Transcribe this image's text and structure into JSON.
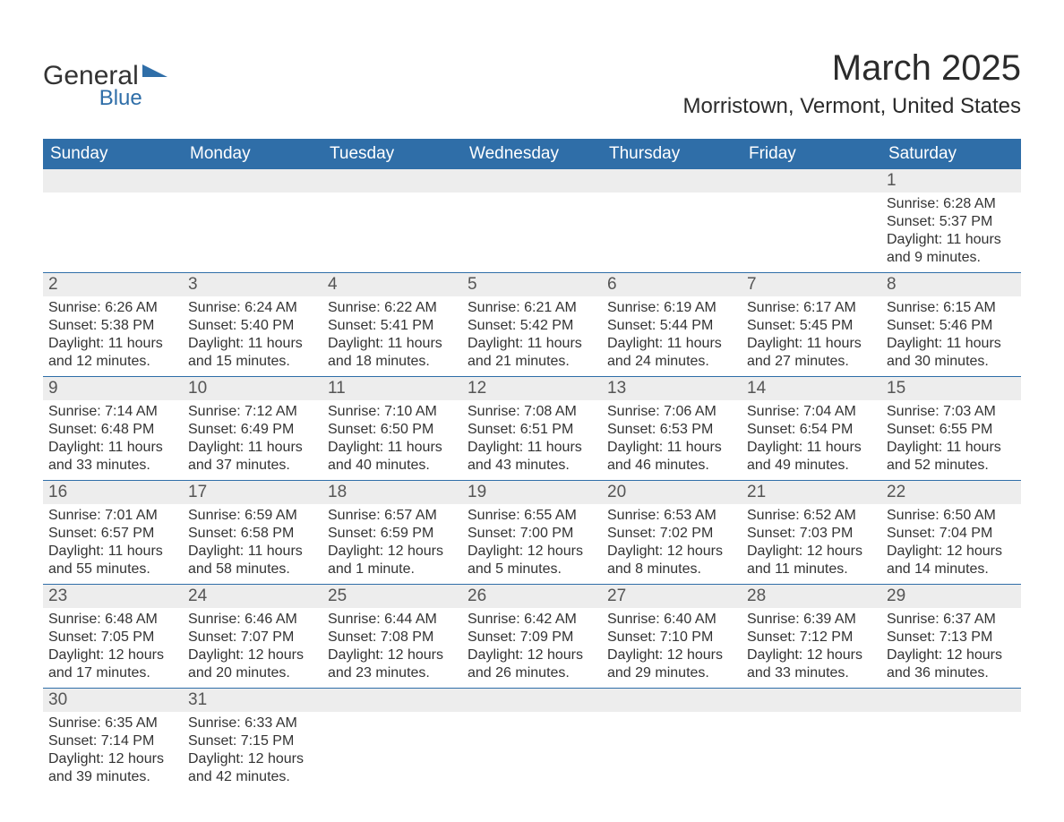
{
  "logo": {
    "word1": "General",
    "word2": "Blue",
    "icon_color": "#2f6ea8"
  },
  "title": "March 2025",
  "location": "Morristown, Vermont, United States",
  "colors": {
    "header_bg": "#2f6ea8",
    "header_fg": "#ffffff",
    "daynum_bg": "#ededed",
    "row_divider": "#2f6ea8",
    "text": "#333333",
    "background": "#ffffff"
  },
  "typography": {
    "title_fontsize": 40,
    "location_fontsize": 24,
    "weekday_fontsize": 19,
    "daynum_fontsize": 19,
    "detail_fontsize": 16,
    "font_family": "Arial"
  },
  "calendar": {
    "weekdays": [
      "Sunday",
      "Monday",
      "Tuesday",
      "Wednesday",
      "Thursday",
      "Friday",
      "Saturday"
    ],
    "weeks": [
      [
        null,
        null,
        null,
        null,
        null,
        null,
        {
          "day": 1,
          "sunrise": "6:28 AM",
          "sunset": "5:37 PM",
          "daylight": "11 hours and 9 minutes."
        }
      ],
      [
        {
          "day": 2,
          "sunrise": "6:26 AM",
          "sunset": "5:38 PM",
          "daylight": "11 hours and 12 minutes."
        },
        {
          "day": 3,
          "sunrise": "6:24 AM",
          "sunset": "5:40 PM",
          "daylight": "11 hours and 15 minutes."
        },
        {
          "day": 4,
          "sunrise": "6:22 AM",
          "sunset": "5:41 PM",
          "daylight": "11 hours and 18 minutes."
        },
        {
          "day": 5,
          "sunrise": "6:21 AM",
          "sunset": "5:42 PM",
          "daylight": "11 hours and 21 minutes."
        },
        {
          "day": 6,
          "sunrise": "6:19 AM",
          "sunset": "5:44 PM",
          "daylight": "11 hours and 24 minutes."
        },
        {
          "day": 7,
          "sunrise": "6:17 AM",
          "sunset": "5:45 PM",
          "daylight": "11 hours and 27 minutes."
        },
        {
          "day": 8,
          "sunrise": "6:15 AM",
          "sunset": "5:46 PM",
          "daylight": "11 hours and 30 minutes."
        }
      ],
      [
        {
          "day": 9,
          "sunrise": "7:14 AM",
          "sunset": "6:48 PM",
          "daylight": "11 hours and 33 minutes."
        },
        {
          "day": 10,
          "sunrise": "7:12 AM",
          "sunset": "6:49 PM",
          "daylight": "11 hours and 37 minutes."
        },
        {
          "day": 11,
          "sunrise": "7:10 AM",
          "sunset": "6:50 PM",
          "daylight": "11 hours and 40 minutes."
        },
        {
          "day": 12,
          "sunrise": "7:08 AM",
          "sunset": "6:51 PM",
          "daylight": "11 hours and 43 minutes."
        },
        {
          "day": 13,
          "sunrise": "7:06 AM",
          "sunset": "6:53 PM",
          "daylight": "11 hours and 46 minutes."
        },
        {
          "day": 14,
          "sunrise": "7:04 AM",
          "sunset": "6:54 PM",
          "daylight": "11 hours and 49 minutes."
        },
        {
          "day": 15,
          "sunrise": "7:03 AM",
          "sunset": "6:55 PM",
          "daylight": "11 hours and 52 minutes."
        }
      ],
      [
        {
          "day": 16,
          "sunrise": "7:01 AM",
          "sunset": "6:57 PM",
          "daylight": "11 hours and 55 minutes."
        },
        {
          "day": 17,
          "sunrise": "6:59 AM",
          "sunset": "6:58 PM",
          "daylight": "11 hours and 58 minutes."
        },
        {
          "day": 18,
          "sunrise": "6:57 AM",
          "sunset": "6:59 PM",
          "daylight": "12 hours and 1 minute."
        },
        {
          "day": 19,
          "sunrise": "6:55 AM",
          "sunset": "7:00 PM",
          "daylight": "12 hours and 5 minutes."
        },
        {
          "day": 20,
          "sunrise": "6:53 AM",
          "sunset": "7:02 PM",
          "daylight": "12 hours and 8 minutes."
        },
        {
          "day": 21,
          "sunrise": "6:52 AM",
          "sunset": "7:03 PM",
          "daylight": "12 hours and 11 minutes."
        },
        {
          "day": 22,
          "sunrise": "6:50 AM",
          "sunset": "7:04 PM",
          "daylight": "12 hours and 14 minutes."
        }
      ],
      [
        {
          "day": 23,
          "sunrise": "6:48 AM",
          "sunset": "7:05 PM",
          "daylight": "12 hours and 17 minutes."
        },
        {
          "day": 24,
          "sunrise": "6:46 AM",
          "sunset": "7:07 PM",
          "daylight": "12 hours and 20 minutes."
        },
        {
          "day": 25,
          "sunrise": "6:44 AM",
          "sunset": "7:08 PM",
          "daylight": "12 hours and 23 minutes."
        },
        {
          "day": 26,
          "sunrise": "6:42 AM",
          "sunset": "7:09 PM",
          "daylight": "12 hours and 26 minutes."
        },
        {
          "day": 27,
          "sunrise": "6:40 AM",
          "sunset": "7:10 PM",
          "daylight": "12 hours and 29 minutes."
        },
        {
          "day": 28,
          "sunrise": "6:39 AM",
          "sunset": "7:12 PM",
          "daylight": "12 hours and 33 minutes."
        },
        {
          "day": 29,
          "sunrise": "6:37 AM",
          "sunset": "7:13 PM",
          "daylight": "12 hours and 36 minutes."
        }
      ],
      [
        {
          "day": 30,
          "sunrise": "6:35 AM",
          "sunset": "7:14 PM",
          "daylight": "12 hours and 39 minutes."
        },
        {
          "day": 31,
          "sunrise": "6:33 AM",
          "sunset": "7:15 PM",
          "daylight": "12 hours and 42 minutes."
        },
        null,
        null,
        null,
        null,
        null
      ]
    ]
  },
  "labels": {
    "sunrise_prefix": "Sunrise: ",
    "sunset_prefix": "Sunset: ",
    "daylight_prefix": "Daylight: "
  }
}
